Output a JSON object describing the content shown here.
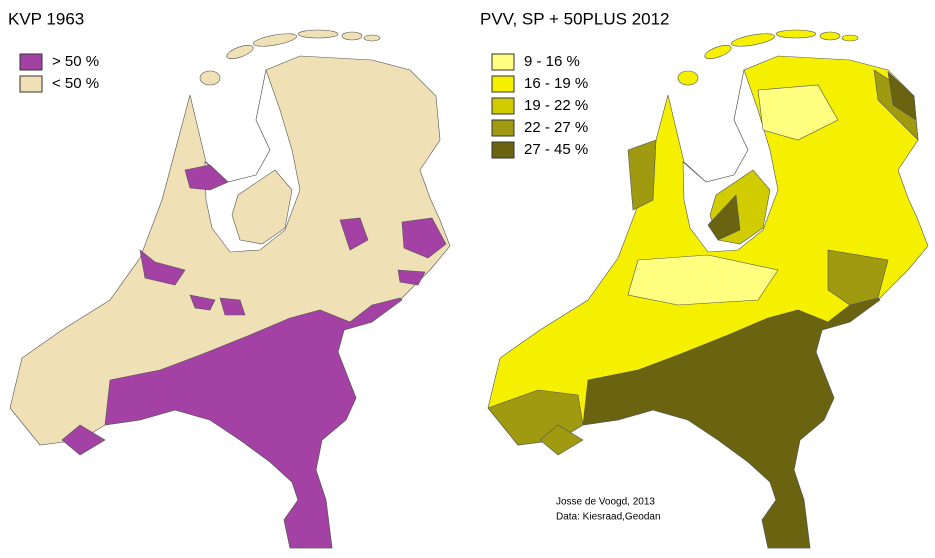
{
  "maps": [
    {
      "title": "KVP 1963",
      "legend": [
        {
          "label": "> 50 %",
          "color": "#a441a4"
        },
        {
          "label": "< 50 %",
          "color": "#efe0b5"
        }
      ]
    },
    {
      "title": "PVV, SP + 50PLUS 2012",
      "legend": [
        {
          "label": "9 - 16 %",
          "color": "#ffff80"
        },
        {
          "label": "16 - 19 %",
          "color": "#f5f000"
        },
        {
          "label": "19 - 22 %",
          "color": "#d0cc00"
        },
        {
          "label": "22 - 27 %",
          "color": "#a09a10"
        },
        {
          "label": "27 - 45 %",
          "color": "#6a6410"
        }
      ]
    }
  ],
  "credit": [
    "Josse de Voogd, 2013",
    "Data: Kiesraad,Geodan"
  ]
}
